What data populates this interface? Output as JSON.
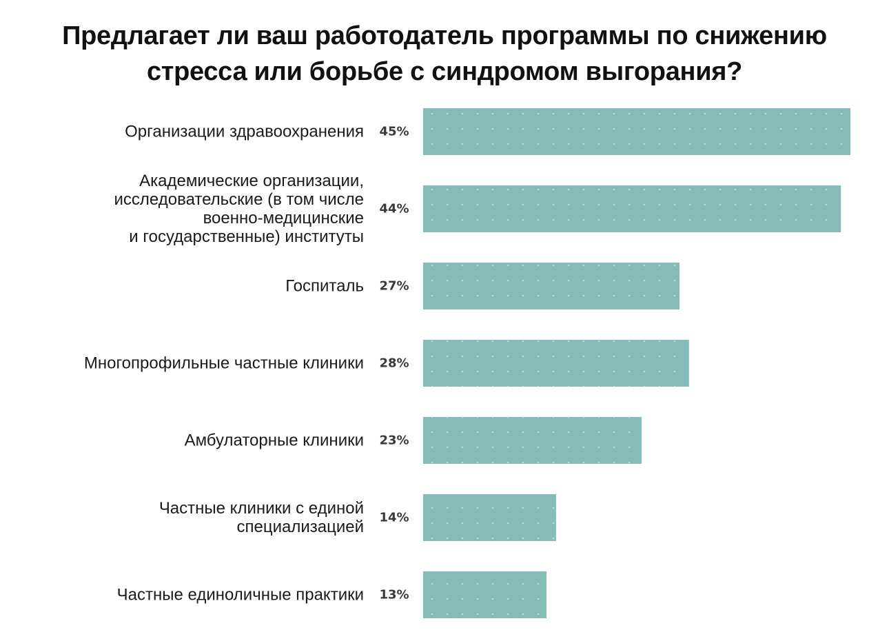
{
  "chart_data": {
    "type": "bar",
    "orientation": "horizontal",
    "title_lines": [
      "Предлагает ли ваш работодатель программы по снижению",
      "стресса или борьбе с синдромом выгорания?"
    ],
    "categories": [
      [
        "Организации здравоохранения"
      ],
      [
        "Академические организации,",
        "исследовательские (в том числе",
        "военно-медицинские",
        "и государственные) институты"
      ],
      [
        "Госпиталь"
      ],
      [
        "Многопрофильные частные клиники"
      ],
      [
        "Амбулаторные клиники"
      ],
      [
        "Частные клиники с единой",
        "специализацией"
      ],
      [
        "Частные единоличные практики"
      ]
    ],
    "values": [
      45,
      44,
      27,
      28,
      23,
      14,
      13
    ],
    "value_labels": [
      "45%",
      "44%",
      "27%",
      "28%",
      "23%",
      "14%",
      "13%"
    ],
    "xlim": [
      0,
      45
    ],
    "grid": false,
    "legend": "none",
    "bar_color": "#86bbb8",
    "dot_color": "#b9dbd8"
  }
}
